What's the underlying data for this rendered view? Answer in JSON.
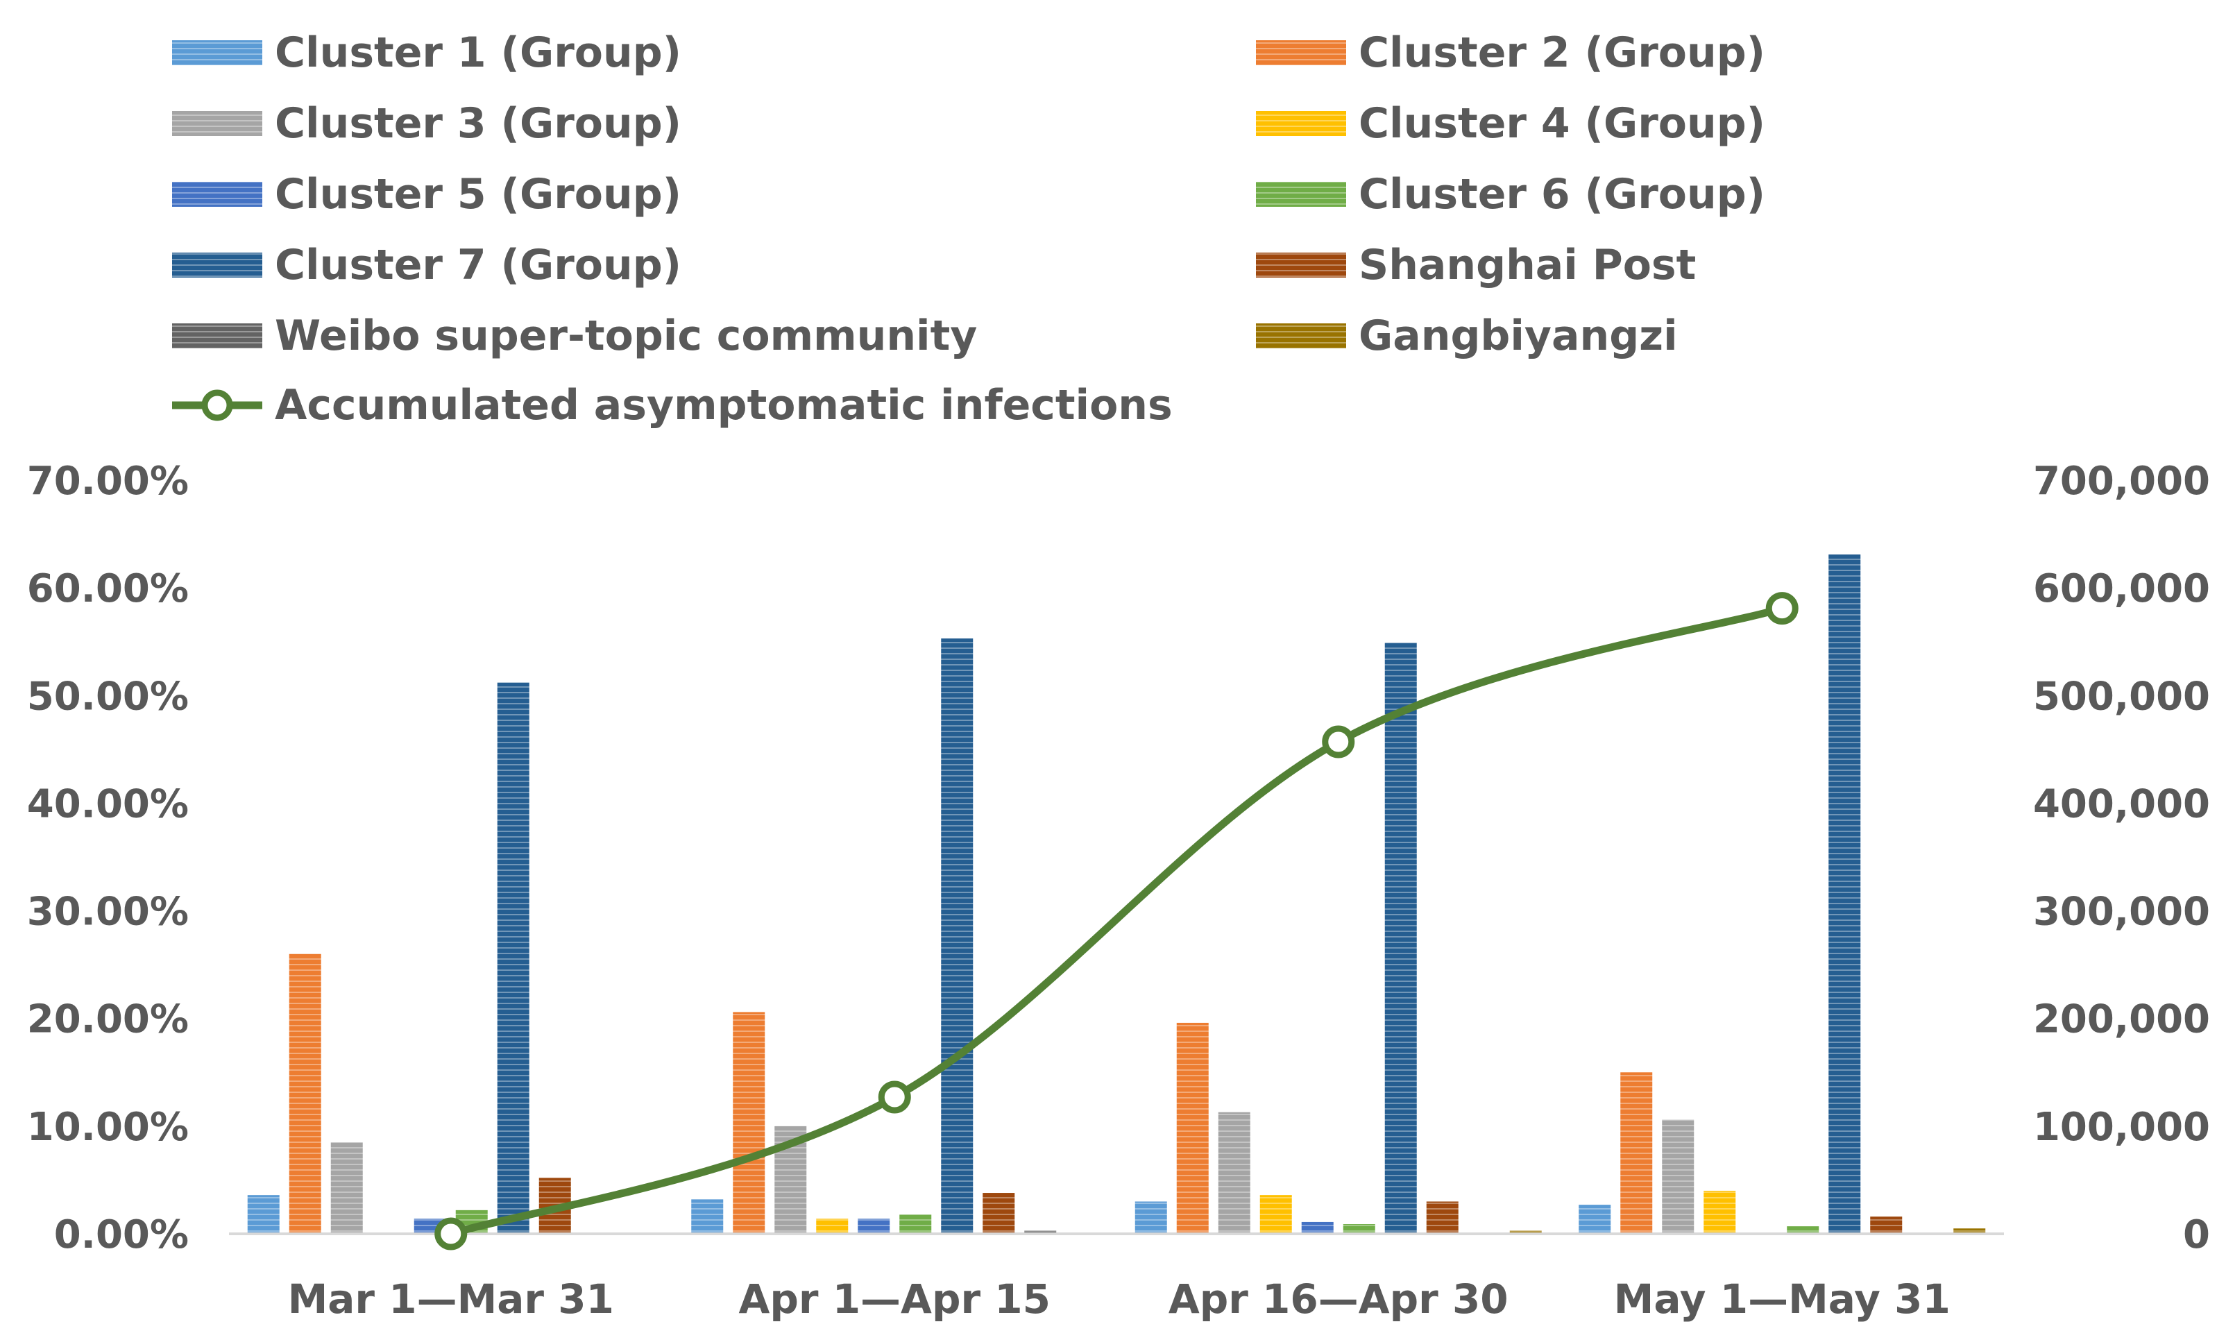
{
  "chart_data": {
    "type": "bar",
    "title": "",
    "xlabel": "",
    "ylabel": "",
    "categories": [
      "Mar 1—Mar 31",
      "Apr 1—Apr 15",
      "Apr 16—Apr 30",
      "May 1—May 31"
    ],
    "ylim": [
      0,
      0.7
    ],
    "y2lim": [
      0,
      700000
    ],
    "y_ticks": [
      "0.00%",
      "10.00%",
      "20.00%",
      "30.00%",
      "40.00%",
      "50.00%",
      "60.00%",
      "70.00%"
    ],
    "y2_ticks": [
      "0",
      "100,000",
      "200,000",
      "300,000",
      "400,000",
      "500,000",
      "600,000",
      "700,000"
    ],
    "legend_position": "top",
    "series": [
      {
        "name": "Cluster 1 (Group)",
        "color": "#5b9bd5",
        "values": [
          0.036,
          0.032,
          0.03,
          0.027
        ]
      },
      {
        "name": "Cluster 2 (Group)",
        "color": "#ed7d31",
        "values": [
          0.26,
          0.206,
          0.196,
          0.15
        ]
      },
      {
        "name": "Cluster 3 (Group)",
        "color": "#a5a5a5",
        "values": [
          0.085,
          0.1,
          0.113,
          0.106
        ]
      },
      {
        "name": "Cluster 4 (Group)",
        "color": "#ffc000",
        "values": [
          0.0,
          0.014,
          0.036,
          0.04
        ]
      },
      {
        "name": "Cluster 5 (Group)",
        "color": "#4472c4",
        "values": [
          0.014,
          0.014,
          0.011,
          0.0
        ]
      },
      {
        "name": "Cluster 6 (Group)",
        "color": "#70ad47",
        "values": [
          0.022,
          0.018,
          0.009,
          0.007
        ]
      },
      {
        "name": "Cluster 7 (Group)",
        "color": "#255e91",
        "values": [
          0.512,
          0.553,
          0.549,
          0.631
        ]
      },
      {
        "name": "Shanghai Post",
        "color": "#9e480e",
        "values": [
          0.052,
          0.038,
          0.03,
          0.016
        ]
      },
      {
        "name": "Weibo super-topic community",
        "color": "#636363",
        "values": [
          0.0,
          0.003,
          0.0,
          0.0
        ]
      },
      {
        "name": "Gangbiyangzi",
        "color": "#997300",
        "values": [
          0.0,
          0.0,
          0.003,
          0.005
        ]
      }
    ],
    "line_series": {
      "name": "Accumulated asymptomatic infections",
      "color": "#538135",
      "axis": "right",
      "values": [
        0,
        127000,
        457000,
        581000
      ]
    }
  }
}
